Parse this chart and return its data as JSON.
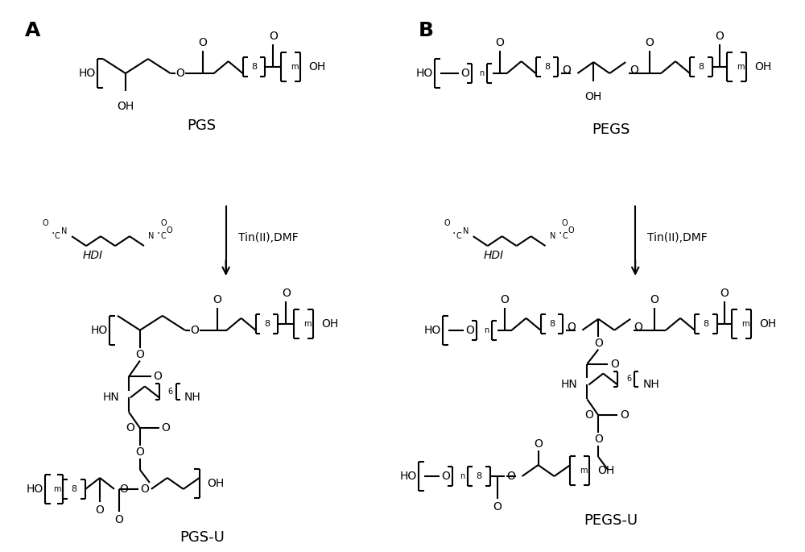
{
  "background_color": "#ffffff",
  "label_A": "A",
  "label_B": "B",
  "label_PGS": "PGS",
  "label_PEGS": "PEGS",
  "label_PGSU": "PGS-U",
  "label_PEGSU": "PEGS-U",
  "label_tin": "Tin(II),DMF",
  "label_HDI": "HDI",
  "fig_width": 10.0,
  "fig_height": 6.85
}
